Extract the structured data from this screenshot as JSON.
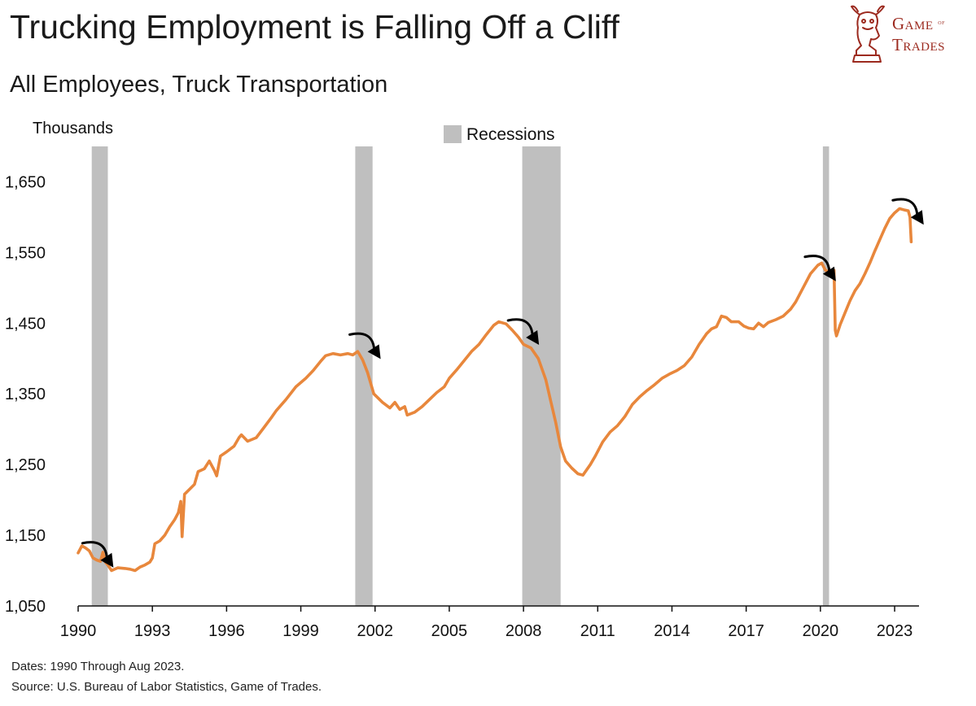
{
  "header": {
    "title": "Trucking Employment is Falling Off a Cliff",
    "subtitle": "All Employees, Truck Transportation"
  },
  "logo": {
    "line1": "Game",
    "line1_small": "of",
    "line2": "Trades",
    "icon": "bull-chess-knight-icon",
    "color": "#9c2a1f"
  },
  "footer": {
    "dates_note": "Dates: 1990 Through Aug 2023.",
    "source_note": "Source: U.S. Bureau of Labor Statistics, Game of Trades."
  },
  "chart_data": {
    "type": "line",
    "ylabel": "Thousands",
    "legend": {
      "label": "Recessions",
      "placement": "top-center",
      "color": "#bfbfbf"
    },
    "line_color": "#e8873c",
    "ylim": [
      1050,
      1700
    ],
    "xlim": [
      1990.0,
      2023.92
    ],
    "y_ticks": [
      1050,
      1150,
      1250,
      1350,
      1450,
      1550,
      1650
    ],
    "y_tick_labels": [
      "1,050",
      "1,150",
      "1,250",
      "1,350",
      "1,450",
      "1,550",
      "1,650"
    ],
    "x_ticks": [
      1990,
      1993,
      1996,
      1999,
      2002,
      2005,
      2008,
      2011,
      2014,
      2017,
      2020,
      2023
    ],
    "x_tick_labels": [
      "1990",
      "1993",
      "1996",
      "1999",
      "2002",
      "2005",
      "2008",
      "2011",
      "2014",
      "2017",
      "2020",
      "2023"
    ],
    "recessions": [
      {
        "start": 1990.55,
        "end": 1991.2
      },
      {
        "start": 2001.2,
        "end": 2001.9
      },
      {
        "start": 2007.95,
        "end": 2009.5
      },
      {
        "start": 2020.1,
        "end": 2020.35
      }
    ],
    "annotation_arrows": [
      {
        "x": 1990.9,
        "y": 1125
      },
      {
        "x": 2001.7,
        "y": 1420
      },
      {
        "x": 2008.1,
        "y": 1440
      },
      {
        "x": 2020.1,
        "y": 1530
      },
      {
        "x": 2023.65,
        "y": 1610
      }
    ],
    "series": [
      {
        "points": [
          [
            1990.0,
            1125
          ],
          [
            1990.15,
            1135
          ],
          [
            1990.3,
            1132
          ],
          [
            1990.45,
            1128
          ],
          [
            1990.6,
            1118
          ],
          [
            1990.75,
            1115
          ],
          [
            1990.9,
            1113
          ],
          [
            1991.0,
            1126
          ],
          [
            1991.1,
            1112
          ],
          [
            1991.2,
            1108
          ],
          [
            1991.35,
            1100
          ],
          [
            1991.6,
            1104
          ],
          [
            1991.9,
            1103
          ],
          [
            1992.1,
            1102
          ],
          [
            1992.3,
            1100
          ],
          [
            1992.5,
            1105
          ],
          [
            1992.7,
            1108
          ],
          [
            1992.9,
            1112
          ],
          [
            1993.0,
            1118
          ],
          [
            1993.1,
            1138
          ],
          [
            1993.3,
            1142
          ],
          [
            1993.5,
            1150
          ],
          [
            1993.7,
            1162
          ],
          [
            1993.9,
            1172
          ],
          [
            1994.05,
            1182
          ],
          [
            1994.15,
            1198
          ],
          [
            1994.2,
            1148
          ],
          [
            1994.3,
            1208
          ],
          [
            1994.5,
            1215
          ],
          [
            1994.7,
            1222
          ],
          [
            1994.85,
            1240
          ],
          [
            1995.1,
            1244
          ],
          [
            1995.3,
            1255
          ],
          [
            1995.5,
            1242
          ],
          [
            1995.6,
            1234
          ],
          [
            1995.75,
            1262
          ],
          [
            1996.0,
            1268
          ],
          [
            1996.3,
            1276
          ],
          [
            1996.5,
            1288
          ],
          [
            1996.6,
            1292
          ],
          [
            1996.85,
            1283
          ],
          [
            1997.2,
            1288
          ],
          [
            1997.5,
            1302
          ],
          [
            1997.8,
            1316
          ],
          [
            1998.0,
            1326
          ],
          [
            1998.4,
            1342
          ],
          [
            1998.8,
            1360
          ],
          [
            1999.2,
            1372
          ],
          [
            1999.5,
            1383
          ],
          [
            1999.8,
            1396
          ],
          [
            2000.0,
            1404
          ],
          [
            2000.3,
            1407
          ],
          [
            2000.6,
            1405
          ],
          [
            2000.9,
            1407
          ],
          [
            2001.1,
            1405
          ],
          [
            2001.3,
            1410
          ],
          [
            2001.5,
            1398
          ],
          [
            2001.7,
            1380
          ],
          [
            2001.95,
            1350
          ],
          [
            2002.3,
            1338
          ],
          [
            2002.6,
            1330
          ],
          [
            2002.8,
            1338
          ],
          [
            2003.0,
            1328
          ],
          [
            2003.2,
            1332
          ],
          [
            2003.3,
            1320
          ],
          [
            2003.6,
            1324
          ],
          [
            2003.9,
            1332
          ],
          [
            2004.2,
            1342
          ],
          [
            2004.5,
            1352
          ],
          [
            2004.8,
            1360
          ],
          [
            2005.0,
            1372
          ],
          [
            2005.3,
            1384
          ],
          [
            2005.6,
            1397
          ],
          [
            2005.9,
            1410
          ],
          [
            2006.2,
            1420
          ],
          [
            2006.5,
            1434
          ],
          [
            2006.8,
            1447
          ],
          [
            2007.0,
            1452
          ],
          [
            2007.3,
            1449
          ],
          [
            2007.55,
            1440
          ],
          [
            2007.8,
            1430
          ],
          [
            2008.0,
            1420
          ],
          [
            2008.3,
            1415
          ],
          [
            2008.6,
            1400
          ],
          [
            2008.9,
            1370
          ],
          [
            2009.1,
            1340
          ],
          [
            2009.3,
            1310
          ],
          [
            2009.5,
            1275
          ],
          [
            2009.7,
            1255
          ],
          [
            2009.95,
            1245
          ],
          [
            2010.2,
            1237
          ],
          [
            2010.4,
            1235
          ],
          [
            2010.7,
            1250
          ],
          [
            2010.9,
            1262
          ],
          [
            2011.2,
            1282
          ],
          [
            2011.5,
            1296
          ],
          [
            2011.8,
            1305
          ],
          [
            2012.1,
            1318
          ],
          [
            2012.4,
            1335
          ],
          [
            2012.7,
            1346
          ],
          [
            2013.0,
            1355
          ],
          [
            2013.3,
            1363
          ],
          [
            2013.6,
            1372
          ],
          [
            2013.9,
            1378
          ],
          [
            2014.2,
            1383
          ],
          [
            2014.5,
            1390
          ],
          [
            2014.8,
            1402
          ],
          [
            2015.1,
            1420
          ],
          [
            2015.4,
            1435
          ],
          [
            2015.6,
            1442
          ],
          [
            2015.8,
            1445
          ],
          [
            2016.0,
            1460
          ],
          [
            2016.2,
            1458
          ],
          [
            2016.4,
            1452
          ],
          [
            2016.7,
            1452
          ],
          [
            2016.9,
            1446
          ],
          [
            2017.1,
            1443
          ],
          [
            2017.3,
            1442
          ],
          [
            2017.5,
            1450
          ],
          [
            2017.7,
            1445
          ],
          [
            2017.9,
            1451
          ],
          [
            2018.2,
            1455
          ],
          [
            2018.5,
            1460
          ],
          [
            2018.8,
            1470
          ],
          [
            2019.0,
            1480
          ],
          [
            2019.3,
            1500
          ],
          [
            2019.6,
            1520
          ],
          [
            2019.9,
            1532
          ],
          [
            2020.05,
            1535
          ],
          [
            2020.2,
            1525
          ],
          [
            2020.45,
            1520
          ],
          [
            2020.55,
            1525
          ],
          [
            2020.6,
            1440
          ],
          [
            2020.65,
            1432
          ],
          [
            2020.8,
            1448
          ],
          [
            2021.0,
            1465
          ],
          [
            2021.2,
            1482
          ],
          [
            2021.4,
            1496
          ],
          [
            2021.6,
            1506
          ],
          [
            2021.8,
            1520
          ],
          [
            2022.0,
            1535
          ],
          [
            2022.2,
            1552
          ],
          [
            2022.4,
            1568
          ],
          [
            2022.6,
            1584
          ],
          [
            2022.8,
            1598
          ],
          [
            2023.0,
            1606
          ],
          [
            2023.2,
            1612
          ],
          [
            2023.4,
            1610
          ],
          [
            2023.55,
            1609
          ],
          [
            2023.62,
            1600
          ],
          [
            2023.67,
            1565
          ]
        ]
      }
    ]
  }
}
